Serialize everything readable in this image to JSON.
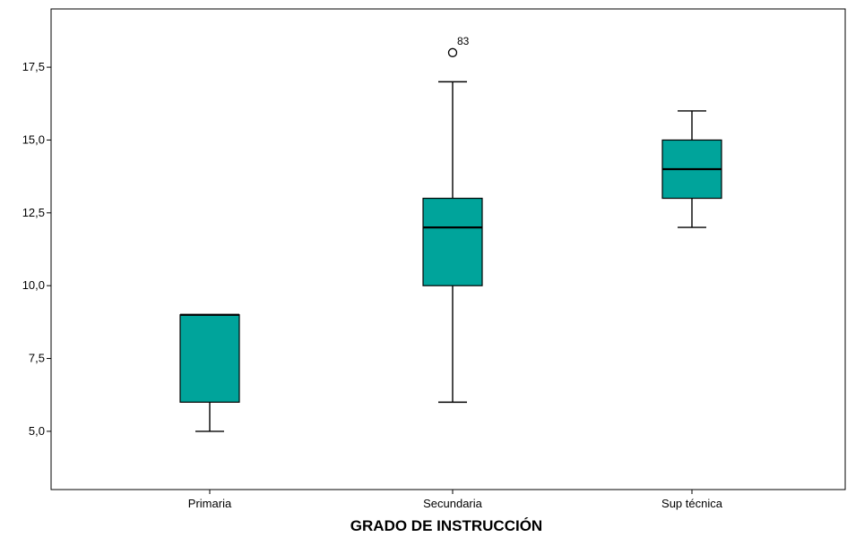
{
  "chart_data": {
    "type": "boxplot",
    "xlabel": "GRADO DE INSTRUCCIÓN",
    "ylabel": "",
    "ylim": [
      3.0,
      19.5
    ],
    "yticks": [
      5.0,
      7.5,
      10.0,
      12.5,
      15.0,
      17.5
    ],
    "ytick_labels": [
      "5,0",
      "7,5",
      "10,0",
      "12,5",
      "15,0",
      "17,5"
    ],
    "grid": false,
    "box_color": "#00a49b",
    "categories": [
      "Primaria",
      "Secundaria",
      "Sup técnica"
    ],
    "boxes": [
      {
        "category": "Primaria",
        "whisker_low": 5.0,
        "q1": 6.0,
        "median": 9.0,
        "q3": 9.0,
        "whisker_high": 9.0,
        "outliers": []
      },
      {
        "category": "Secundaria",
        "whisker_low": 6.0,
        "q1": 10.0,
        "median": 12.0,
        "q3": 13.0,
        "whisker_high": 17.0,
        "outliers": [
          {
            "value": 18.0,
            "label": "83"
          }
        ]
      },
      {
        "category": "Sup técnica",
        "whisker_low": 12.0,
        "q1": 13.0,
        "median": 14.0,
        "q3": 15.0,
        "whisker_high": 16.0,
        "outliers": []
      }
    ]
  }
}
